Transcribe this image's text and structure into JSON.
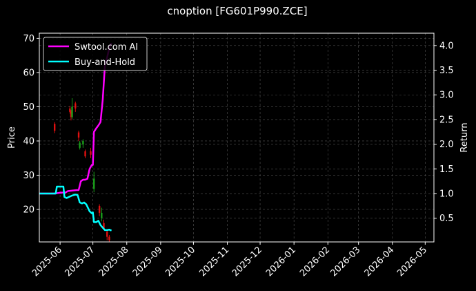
{
  "chart_data": {
    "type": "line",
    "title": "cnoption [FG601P990.ZCE]",
    "ylabel": "Price",
    "y2label": "Return",
    "ylim": [
      10.5,
      71.5
    ],
    "y2lim": [
      0.02,
      4.25
    ],
    "xlim": [
      "2025-05-13",
      "2026-05-09"
    ],
    "yticks": [
      20,
      30,
      40,
      50,
      60,
      70
    ],
    "y2ticks": [
      0.5,
      1.0,
      1.5,
      2.0,
      2.5,
      3.0,
      3.5,
      4.0
    ],
    "y2tick_labels": [
      "0.5",
      "1.0",
      "1.5",
      "2.0",
      "2.5",
      "3.0",
      "3.5",
      "4.0"
    ],
    "xticks": [
      "2025-06-01",
      "2025-07-01",
      "2025-08-01",
      "2025-09-01",
      "2025-10-01",
      "2025-11-01",
      "2025-12-01",
      "2026-01-01",
      "2026-02-01",
      "2026-03-01",
      "2026-04-01",
      "2026-05-01"
    ],
    "xtick_labels": [
      "2025-06",
      "2025-07",
      "2025-08",
      "2025-09",
      "2025-10",
      "2025-11",
      "2025-12",
      "2026-01",
      "2026-02",
      "2026-03",
      "2026-04",
      "2026-05"
    ],
    "grid": true,
    "legend_position": "top-left",
    "series": [
      {
        "name": "Swtool.com AI",
        "color": "#ff00ff",
        "axis": "Return",
        "points": [
          [
            "2025-05-13",
            1.0
          ],
          [
            "2025-05-20",
            1.0
          ],
          [
            "2025-05-27",
            1.0
          ],
          [
            "2025-06-02",
            1.02
          ],
          [
            "2025-06-06",
            1.02
          ],
          [
            "2025-06-08",
            1.05
          ],
          [
            "2025-06-12",
            1.06
          ],
          [
            "2025-06-16",
            1.07
          ],
          [
            "2025-06-18",
            1.07
          ],
          [
            "2025-06-20",
            1.25
          ],
          [
            "2025-06-22",
            1.28
          ],
          [
            "2025-06-24",
            1.28
          ],
          [
            "2025-06-26",
            1.3
          ],
          [
            "2025-06-28",
            1.5
          ],
          [
            "2025-06-30",
            1.58
          ],
          [
            "2025-07-01",
            1.58
          ],
          [
            "2025-07-02",
            2.25
          ],
          [
            "2025-07-04",
            2.32
          ],
          [
            "2025-07-06",
            2.38
          ],
          [
            "2025-07-08",
            2.45
          ],
          [
            "2025-07-10",
            2.9
          ],
          [
            "2025-07-12",
            3.6
          ],
          [
            "2025-07-14",
            3.75
          ],
          [
            "2025-07-16",
            3.95
          ],
          [
            "2025-07-18",
            4.05
          ]
        ]
      },
      {
        "name": "Buy-and-Hold",
        "color": "#00ffff",
        "axis": "Return",
        "points": [
          [
            "2025-05-13",
            1.0
          ],
          [
            "2025-05-20",
            1.0
          ],
          [
            "2025-05-26",
            1.0
          ],
          [
            "2025-05-28",
            1.0
          ],
          [
            "2025-05-29",
            1.14
          ],
          [
            "2025-06-03",
            1.14
          ],
          [
            "2025-06-04",
            1.14
          ],
          [
            "2025-06-05",
            0.93
          ],
          [
            "2025-06-07",
            0.91
          ],
          [
            "2025-06-09",
            0.93
          ],
          [
            "2025-06-12",
            0.96
          ],
          [
            "2025-06-15",
            0.98
          ],
          [
            "2025-06-17",
            0.97
          ],
          [
            "2025-06-19",
            0.82
          ],
          [
            "2025-06-21",
            0.8
          ],
          [
            "2025-06-23",
            0.82
          ],
          [
            "2025-06-25",
            0.78
          ],
          [
            "2025-06-28",
            0.64
          ],
          [
            "2025-06-30",
            0.6
          ],
          [
            "2025-07-01",
            0.62
          ],
          [
            "2025-07-02",
            0.42
          ],
          [
            "2025-07-04",
            0.42
          ],
          [
            "2025-07-06",
            0.45
          ],
          [
            "2025-07-08",
            0.36
          ],
          [
            "2025-07-10",
            0.31
          ],
          [
            "2025-07-12",
            0.26
          ],
          [
            "2025-07-14",
            0.26
          ],
          [
            "2025-07-16",
            0.27
          ],
          [
            "2025-07-18",
            0.25
          ]
        ]
      }
    ],
    "candles": [
      {
        "date": "2025-05-27",
        "open": 43.0,
        "close": 45.0,
        "low": 42.3,
        "high": 45.5,
        "color": "red"
      },
      {
        "date": "2025-06-10",
        "open": 49.5,
        "close": 48.5,
        "low": 48.0,
        "high": 50.3,
        "color": "red"
      },
      {
        "date": "2025-06-11",
        "open": 48.5,
        "close": 47.0,
        "low": 46.0,
        "high": 49.0,
        "color": "red"
      },
      {
        "date": "2025-06-12",
        "open": 47.0,
        "close": 50.0,
        "low": 46.5,
        "high": 52.5,
        "color": "green"
      },
      {
        "date": "2025-06-15",
        "open": 51.0,
        "close": 49.5,
        "low": 48.5,
        "high": 51.5,
        "color": "red"
      },
      {
        "date": "2025-06-18",
        "open": 42.5,
        "close": 41.0,
        "low": 40.0,
        "high": 43.0,
        "color": "red"
      },
      {
        "date": "2025-06-19",
        "open": 38.0,
        "close": 39.5,
        "low": 37.5,
        "high": 40.0,
        "color": "green"
      },
      {
        "date": "2025-06-22",
        "open": 39.0,
        "close": 40.0,
        "low": 38.0,
        "high": 40.5,
        "color": "green"
      },
      {
        "date": "2025-06-24",
        "open": 37.0,
        "close": 35.5,
        "low": 35.0,
        "high": 37.5,
        "color": "red"
      },
      {
        "date": "2025-06-29",
        "open": 36.0,
        "close": 37.0,
        "low": 35.0,
        "high": 38.0,
        "color": "red"
      },
      {
        "date": "2025-07-02",
        "open": 26.0,
        "close": 29.0,
        "low": 25.0,
        "high": 31.0,
        "color": "green"
      },
      {
        "date": "2025-07-07",
        "open": 21.0,
        "close": 19.0,
        "low": 18.0,
        "high": 21.5,
        "color": "red"
      },
      {
        "date": "2025-07-09",
        "open": 17.5,
        "close": 19.0,
        "low": 16.5,
        "high": 20.5,
        "color": "green"
      },
      {
        "date": "2025-07-11",
        "open": 16.0,
        "close": 14.5,
        "low": 14.0,
        "high": 17.0,
        "color": "red"
      },
      {
        "date": "2025-07-14",
        "open": 13.5,
        "close": 12.0,
        "low": 11.0,
        "high": 14.0,
        "color": "red"
      },
      {
        "date": "2025-07-16",
        "open": 12.0,
        "close": 11.0,
        "low": 10.5,
        "high": 12.5,
        "color": "red"
      }
    ],
    "colors": {
      "background": "#000000",
      "grid": "#555555",
      "axes": "#ffffff",
      "candle_up": "#1a9e1a",
      "candle_down": "#e01010"
    }
  }
}
